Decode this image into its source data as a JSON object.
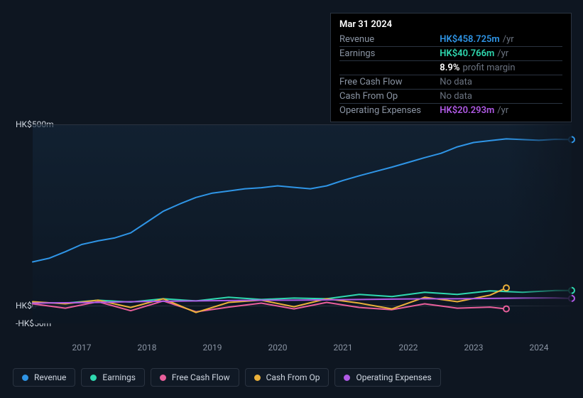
{
  "tooltip": {
    "date": "Mar 31 2024",
    "rows": [
      {
        "label": "Revenue",
        "value": "HK$458.725m",
        "suffix": "/yr",
        "color": "#2f95e6",
        "nodata": false
      },
      {
        "label": "Earnings",
        "value": "HK$40.766m",
        "suffix": "/yr",
        "color": "#2fd9b0",
        "nodata": false
      },
      {
        "label": "",
        "value": "8.9%",
        "suffix": "profit margin",
        "color": "#ffffff",
        "nodata": false
      },
      {
        "label": "Free Cash Flow",
        "value": "No data",
        "suffix": "",
        "color": "",
        "nodata": true
      },
      {
        "label": "Cash From Op",
        "value": "No data",
        "suffix": "",
        "color": "",
        "nodata": true
      },
      {
        "label": "Operating Expenses",
        "value": "HK$20.293m",
        "suffix": "/yr",
        "color": "#b05ae6",
        "nodata": false
      }
    ]
  },
  "chart": {
    "type": "line",
    "background_color": "#0e1621",
    "grid_color": "#2a3340",
    "label_fontsize": 12,
    "label_color": "#d0d7e0",
    "ylim": [
      -50,
      500
    ],
    "ylabels": [
      {
        "text": "HK$500m",
        "value": 500
      },
      {
        "text": "HK$0",
        "value": 0
      },
      {
        "text": "-HK$50m",
        "value": -50
      }
    ],
    "x_years": [
      2017,
      2018,
      2019,
      2020,
      2021,
      2022,
      2023,
      2024
    ],
    "x_start": 2016.25,
    "x_end": 2024.5,
    "line_width": 2,
    "series": [
      {
        "name": "Revenue",
        "color": "#2f95e6",
        "points": [
          [
            2016.25,
            120
          ],
          [
            2016.5,
            130
          ],
          [
            2016.75,
            148
          ],
          [
            2017.0,
            168
          ],
          [
            2017.25,
            178
          ],
          [
            2017.5,
            186
          ],
          [
            2017.75,
            200
          ],
          [
            2018.0,
            230
          ],
          [
            2018.25,
            260
          ],
          [
            2018.5,
            280
          ],
          [
            2018.75,
            298
          ],
          [
            2019.0,
            310
          ],
          [
            2019.25,
            316
          ],
          [
            2019.5,
            322
          ],
          [
            2019.75,
            325
          ],
          [
            2020.0,
            330
          ],
          [
            2020.25,
            326
          ],
          [
            2020.5,
            322
          ],
          [
            2020.75,
            330
          ],
          [
            2021.0,
            345
          ],
          [
            2021.25,
            358
          ],
          [
            2021.5,
            370
          ],
          [
            2021.75,
            382
          ],
          [
            2022.0,
            395
          ],
          [
            2022.25,
            408
          ],
          [
            2022.5,
            420
          ],
          [
            2022.75,
            438
          ],
          [
            2023.0,
            450
          ],
          [
            2023.25,
            455
          ],
          [
            2023.5,
            460
          ],
          [
            2023.75,
            458
          ],
          [
            2024.0,
            456
          ],
          [
            2024.25,
            458.7
          ],
          [
            2024.5,
            458
          ]
        ]
      },
      {
        "name": "Earnings",
        "color": "#2fd9b0",
        "points": [
          [
            2016.25,
            8
          ],
          [
            2016.75,
            6
          ],
          [
            2017.25,
            14
          ],
          [
            2017.75,
            9
          ],
          [
            2018.25,
            18
          ],
          [
            2018.75,
            12
          ],
          [
            2019.25,
            22
          ],
          [
            2019.75,
            16
          ],
          [
            2020.25,
            20
          ],
          [
            2020.75,
            18
          ],
          [
            2021.25,
            30
          ],
          [
            2021.75,
            24
          ],
          [
            2022.25,
            36
          ],
          [
            2022.75,
            30
          ],
          [
            2023.25,
            40
          ],
          [
            2023.75,
            36
          ],
          [
            2024.25,
            40.8
          ],
          [
            2024.5,
            41
          ]
        ]
      },
      {
        "name": "Free Cash Flow",
        "color": "#e85f9b",
        "points": [
          [
            2016.25,
            4
          ],
          [
            2016.75,
            -8
          ],
          [
            2017.25,
            10
          ],
          [
            2017.75,
            -15
          ],
          [
            2018.25,
            12
          ],
          [
            2018.75,
            -18
          ],
          [
            2019.25,
            -5
          ],
          [
            2019.75,
            6
          ],
          [
            2020.25,
            -10
          ],
          [
            2020.75,
            8
          ],
          [
            2021.25,
            -6
          ],
          [
            2021.75,
            -12
          ],
          [
            2022.25,
            4
          ],
          [
            2022.75,
            -8
          ],
          [
            2023.25,
            -5
          ],
          [
            2023.5,
            -10
          ]
        ]
      },
      {
        "name": "Cash From Op",
        "color": "#eab03a",
        "points": [
          [
            2016.25,
            10
          ],
          [
            2016.75,
            4
          ],
          [
            2017.25,
            14
          ],
          [
            2017.75,
            -6
          ],
          [
            2018.25,
            18
          ],
          [
            2018.75,
            -20
          ],
          [
            2019.25,
            8
          ],
          [
            2019.75,
            14
          ],
          [
            2020.25,
            -4
          ],
          [
            2020.75,
            18
          ],
          [
            2021.25,
            6
          ],
          [
            2021.75,
            -10
          ],
          [
            2022.25,
            22
          ],
          [
            2022.75,
            10
          ],
          [
            2023.25,
            28
          ],
          [
            2023.5,
            48
          ]
        ]
      },
      {
        "name": "Operating Expenses",
        "color": "#b05ae6",
        "points": [
          [
            2016.25,
            6
          ],
          [
            2016.75,
            7
          ],
          [
            2017.25,
            8
          ],
          [
            2017.75,
            10
          ],
          [
            2018.25,
            11
          ],
          [
            2018.75,
            12
          ],
          [
            2019.25,
            13
          ],
          [
            2019.75,
            14
          ],
          [
            2020.25,
            14
          ],
          [
            2020.75,
            15
          ],
          [
            2021.25,
            16
          ],
          [
            2021.75,
            17
          ],
          [
            2022.25,
            18
          ],
          [
            2022.75,
            18
          ],
          [
            2023.25,
            19
          ],
          [
            2023.75,
            20
          ],
          [
            2024.25,
            20.3
          ],
          [
            2024.5,
            19
          ]
        ]
      }
    ]
  },
  "legend": [
    {
      "label": "Revenue",
      "color": "#2f95e6"
    },
    {
      "label": "Earnings",
      "color": "#2fd9b0"
    },
    {
      "label": "Free Cash Flow",
      "color": "#e85f9b"
    },
    {
      "label": "Cash From Op",
      "color": "#eab03a"
    },
    {
      "label": "Operating Expenses",
      "color": "#b05ae6"
    }
  ]
}
